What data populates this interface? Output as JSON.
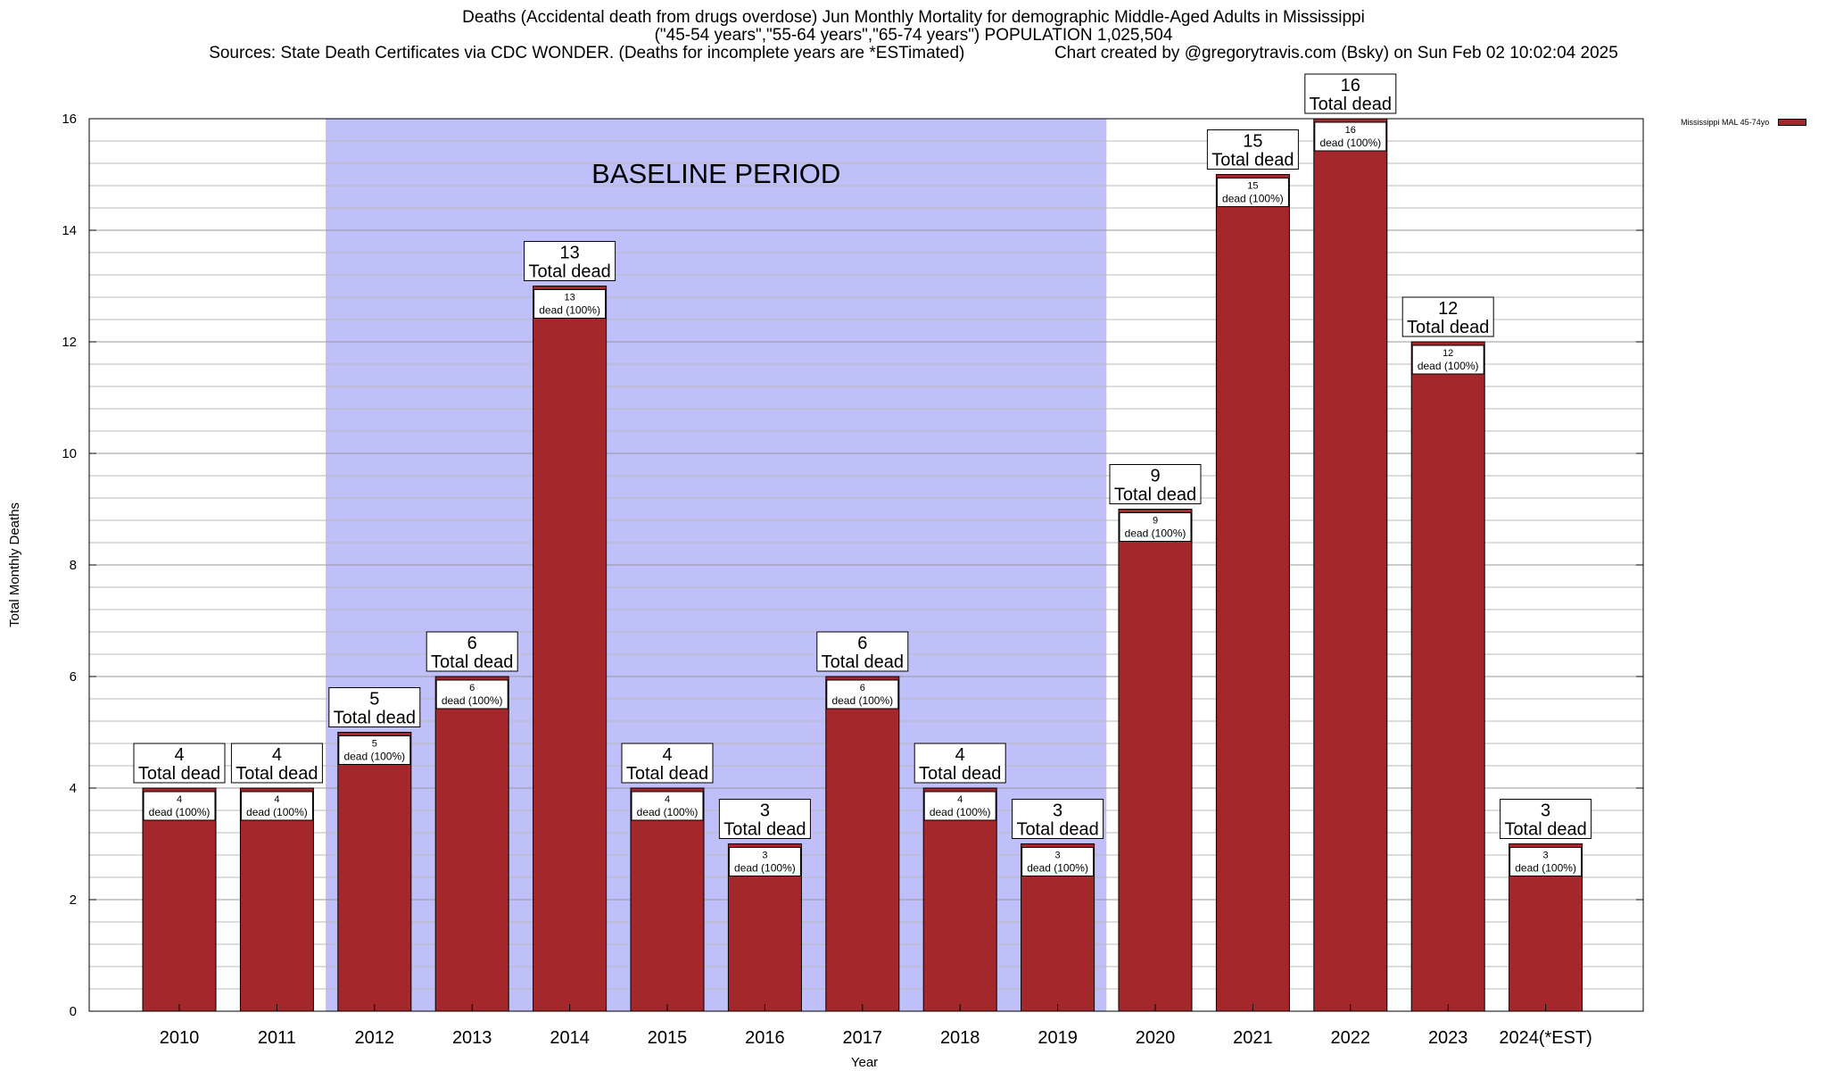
{
  "title_lines": [
    "Deaths (Accidental death from drugs overdose) Jun Monthly Mortality for demographic Middle-Aged Adults in Mississippi",
    "(\"45-54 years\",\"55-64 years\",\"65-74 years\") POPULATION 1,025,504",
    "Sources: State Death Certificates via CDC WONDER. (Deaths for incomplete years are *ESTimated)",
    "Chart created by @gregorytravis.com (Bsky) on Sun Feb 02 10:02:04 2025"
  ],
  "colors": {
    "bar": "#a4282b",
    "baseline_shade": "#bfbffa",
    "grid": "#bbbbbb"
  },
  "chart_data": {
    "type": "bar",
    "categories": [
      "2010",
      "2011",
      "2012",
      "2013",
      "2014",
      "2015",
      "2016",
      "2017",
      "2018",
      "2019",
      "2020",
      "2021",
      "2022",
      "2023",
      "2024(*EST)"
    ],
    "series": [
      {
        "name": "Mississippi MAL 45-74yo",
        "values": [
          4,
          4,
          5,
          6,
          13,
          4,
          3,
          6,
          4,
          3,
          9,
          15,
          16,
          12,
          3
        ]
      }
    ],
    "xlabel": "Year",
    "ylabel": "Total Monthly Deaths",
    "ylim": [
      0,
      16
    ],
    "yticks": [
      0,
      2,
      4,
      6,
      8,
      10,
      12,
      14,
      16
    ],
    "grid": true,
    "legend": "top-right",
    "total_label": "Total dead",
    "inner_label": "dead (100%)",
    "baseline_period": {
      "label": "BASELINE PERIOD",
      "from": "2012",
      "to": "2019"
    }
  }
}
